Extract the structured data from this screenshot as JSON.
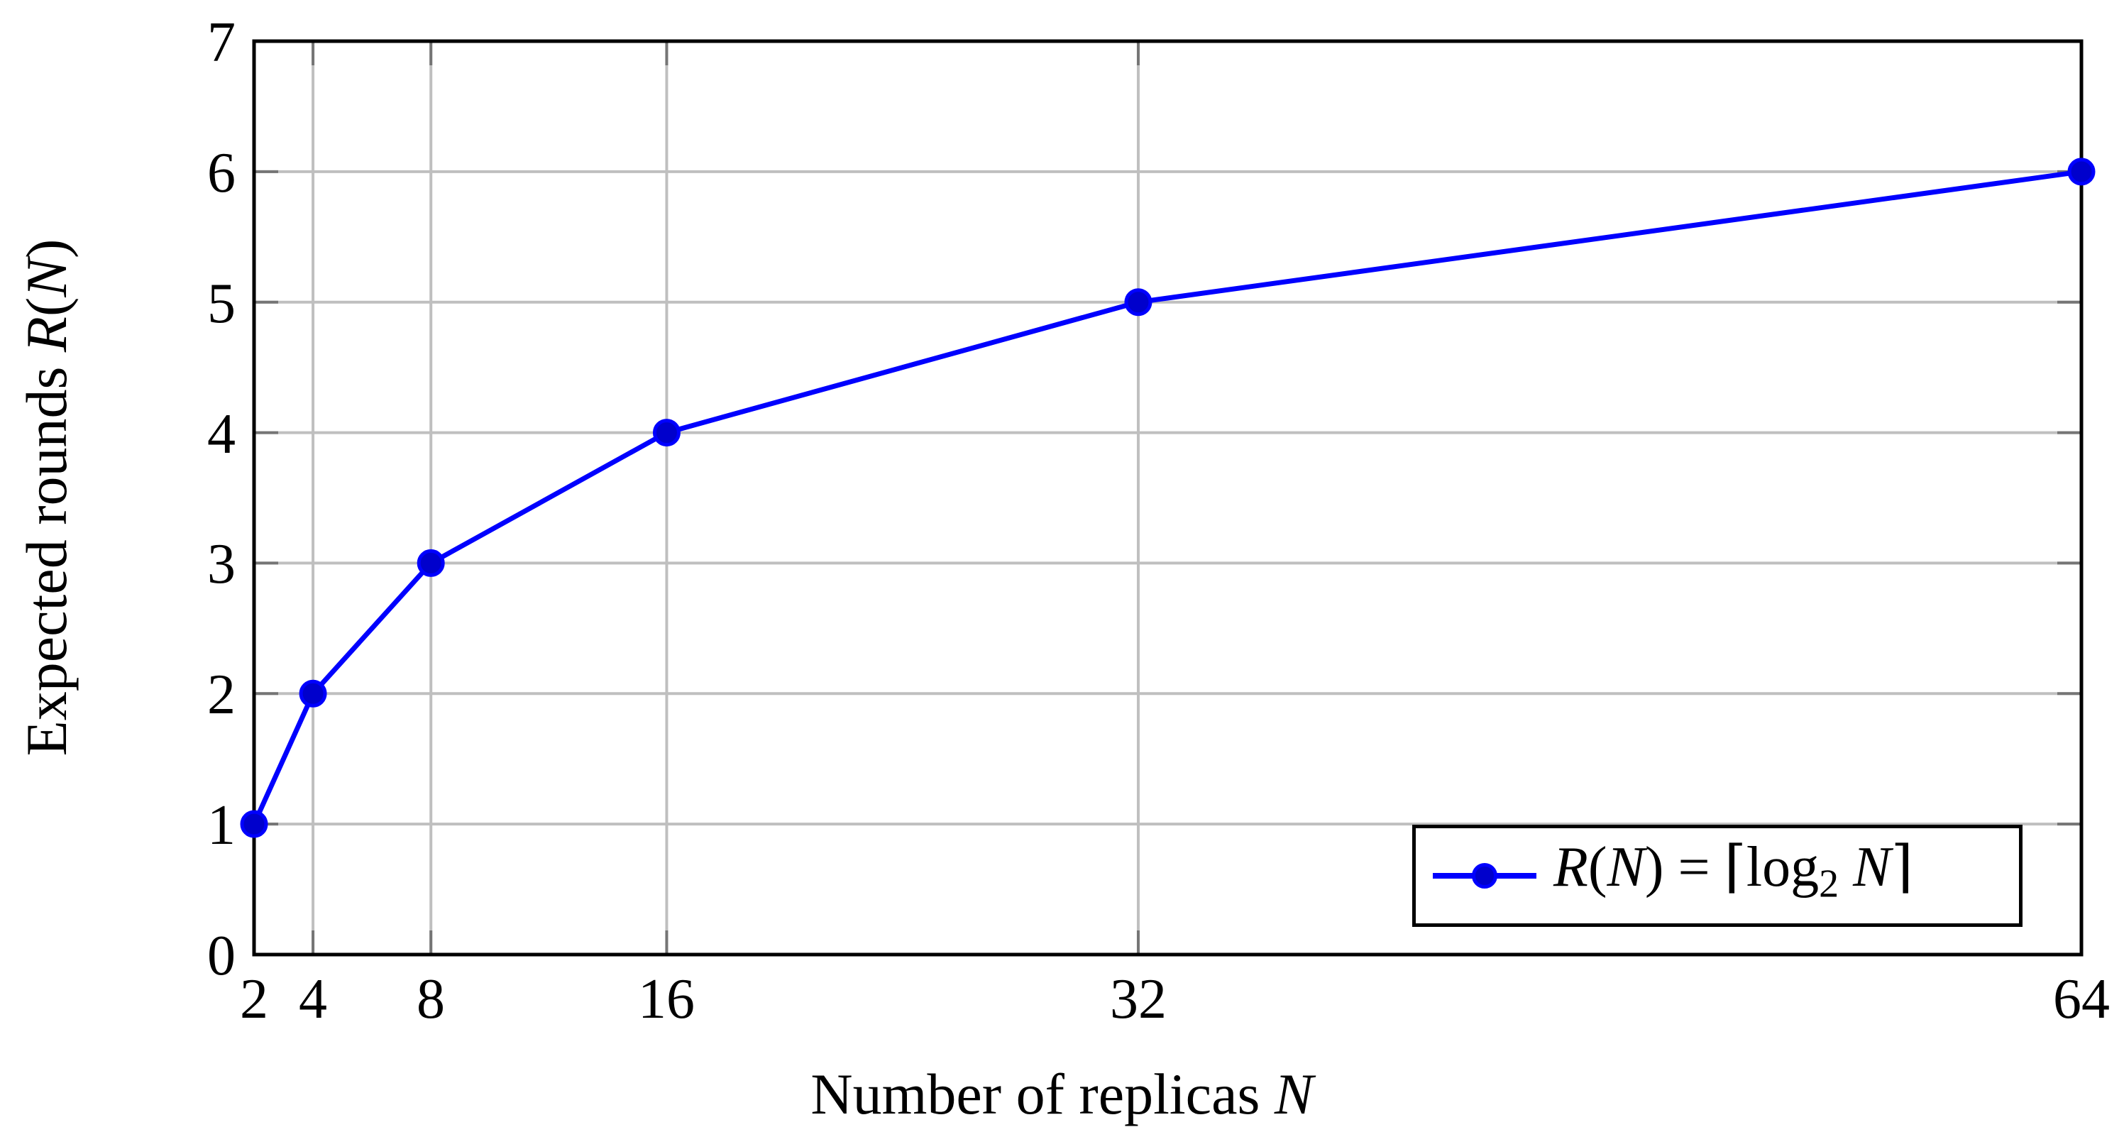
{
  "chart_data": {
    "type": "line",
    "title": "",
    "x_axis_type": "linear",
    "xlabel": "Number of replicas N",
    "ylabel": "Expected rounds R(N)",
    "xlabel_parts": [
      {
        "t": "Number of replicas ",
        "s": "n"
      },
      {
        "t": "N",
        "s": "i"
      }
    ],
    "ylabel_parts": [
      {
        "t": "Expected rounds ",
        "s": "n"
      },
      {
        "t": "R",
        "s": "i"
      },
      {
        "t": "(",
        "s": "n"
      },
      {
        "t": "N",
        "s": "i"
      },
      {
        "t": ")",
        "s": "n"
      }
    ],
    "x_ticks": [
      2,
      4,
      8,
      16,
      32,
      64
    ],
    "y_ticks": [
      0,
      1,
      2,
      3,
      4,
      5,
      6,
      7
    ],
    "xlim": [
      2,
      64
    ],
    "ylim": [
      0,
      7
    ],
    "grid": true,
    "series": [
      {
        "name": "R(N) = ⌈log2 N⌉",
        "marker": "filled-circle",
        "points": [
          [
            2,
            1
          ],
          [
            4,
            2
          ],
          [
            8,
            3
          ],
          [
            16,
            4
          ],
          [
            32,
            5
          ],
          [
            64,
            6
          ]
        ]
      }
    ],
    "legend": {
      "position": "south-east",
      "entries": [
        {
          "label": "R(N) = ⌈log2 N⌉",
          "label_parts": [
            {
              "t": "R",
              "s": "i"
            },
            {
              "t": "(",
              "s": "n"
            },
            {
              "t": "N",
              "s": "i"
            },
            {
              "t": ") = ",
              "s": "n"
            },
            {
              "t": "⌈",
              "s": "n"
            },
            {
              "t": "log",
              "s": "n"
            },
            {
              "t": "2",
              "s": "sub"
            },
            {
              "t": " ",
              "s": "n"
            },
            {
              "t": "N",
              "s": "i"
            },
            {
              "t": "⌉",
              "s": "n"
            }
          ],
          "marker": "filled-circle"
        }
      ]
    },
    "colors": {
      "line": "#0000fe",
      "marker_fill": "#0000cc",
      "marker_stroke": "#0000fe",
      "grid": "#bfbfbf",
      "tick": "#757575",
      "axis": "#000000",
      "text": "#000000",
      "background": "#ffffff",
      "legend_border": "#000000",
      "legend_background": "#ffffff"
    }
  }
}
